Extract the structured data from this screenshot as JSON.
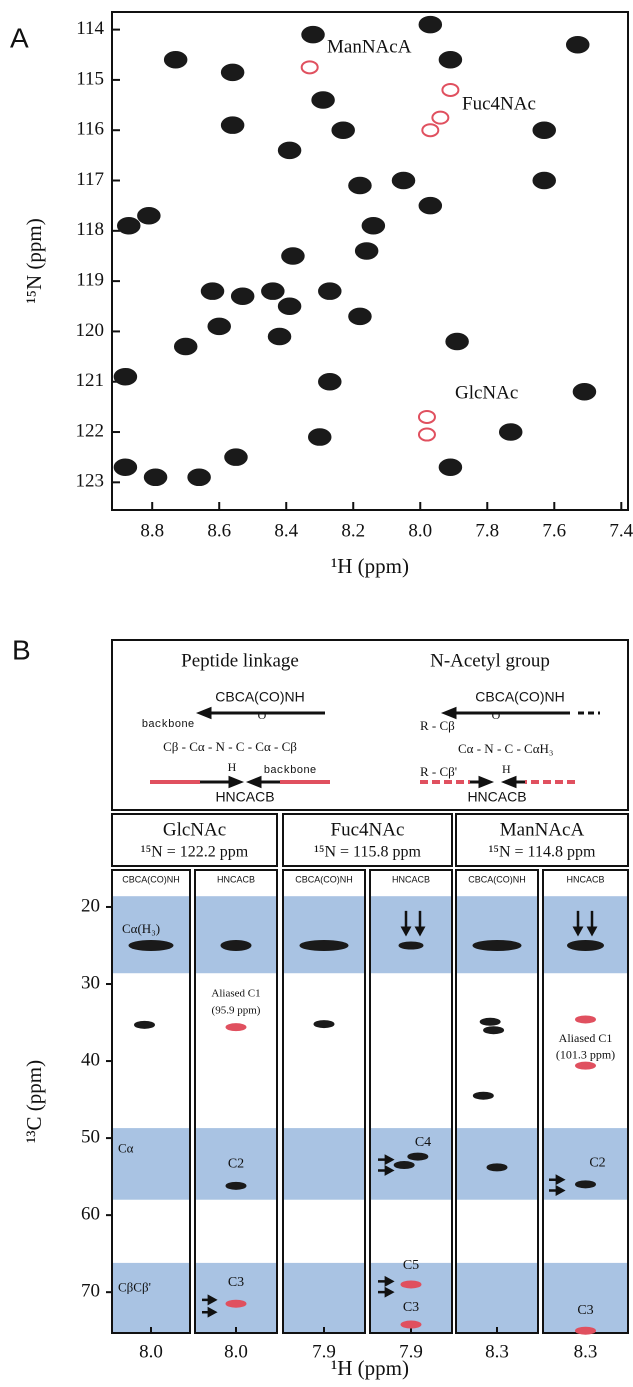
{
  "panel_labels": [
    "A",
    "B"
  ],
  "chart_data": [
    {
      "type": "scatter",
      "xlabel": "¹H (ppm)",
      "ylabel": "¹⁵N (ppm)",
      "xlim": [
        8.92,
        7.38
      ],
      "ylim": [
        113.65,
        123.55
      ],
      "xticks": [
        8.8,
        8.6,
        8.4,
        8.2,
        {
          "value": 8,
          "label": "8.0"
        },
        7.8,
        7.6,
        7.4
      ],
      "yticks": [
        114,
        115,
        116,
        117,
        118,
        119,
        120,
        121,
        122,
        123
      ],
      "series": [
        {
          "color": "#1a1a1a",
          "x": [
            8.73,
            8.56,
            8.56,
            8.32,
            8.29,
            8.39,
            8.23,
            7.97,
            7.91,
            7.53,
            7.63,
            7.63,
            8.18,
            8.05,
            7.97,
            8.14,
            8.16,
            8.87,
            8.81,
            8.38,
            8.62,
            8.53,
            8.44,
            8.39,
            8.27,
            8.18,
            8.6,
            8.7,
            8.42,
            7.89,
            8.88,
            8.27,
            7.51,
            8.3,
            7.73,
            8.55,
            7.91,
            8.88,
            8.79,
            8.66
          ],
          "values": [
            114.6,
            114.85,
            115.9,
            114.1,
            115.4,
            116.4,
            116.0,
            113.9,
            114.6,
            114.3,
            116.0,
            117.0,
            117.1,
            117.0,
            117.5,
            117.9,
            118.4,
            117.9,
            117.7,
            118.5,
            119.2,
            119.3,
            119.2,
            119.5,
            119.2,
            119.7,
            119.9,
            120.3,
            120.1,
            120.2,
            120.9,
            121.0,
            121.2,
            122.1,
            122.0,
            122.5,
            122.7,
            122.7,
            122.9,
            122.9
          ]
        },
        {
          "color": "#e0505f",
          "x": [
            8.33,
            7.91,
            7.94,
            7.97,
            7.98,
            7.98
          ],
          "values": [
            114.75,
            115.2,
            115.75,
            116.0,
            121.7,
            122.05
          ]
        }
      ],
      "annotations": [
        "ManNAcA",
        "Fuc4NAc",
        "GlcNAc"
      ]
    },
    {
      "type": "strips",
      "ylabel": "¹³C (ppm)",
      "xlabel": "¹H (ppm)",
      "ylim": [
        15.2,
        75.3
      ],
      "yticks": [
        20,
        30,
        40,
        50,
        60,
        70
      ],
      "bands": [
        [
          18.6,
          28.6
        ],
        [
          48.7,
          58.0
        ],
        [
          66.2,
          75.3
        ]
      ],
      "band_color": "#a9c3e3",
      "groups": [
        {
          "name": "GlcNAc",
          "subtitle": "¹⁵N = 122.2 ppm"
        },
        {
          "name": "Fuc4NAc",
          "subtitle": "¹⁵N = 115.8 ppm"
        },
        {
          "name": "ManNAcA",
          "subtitle": "¹⁵N = 114.8 ppm"
        }
      ],
      "strips": [
        {
          "label": "CBCA(CO)NH",
          "xlim": [
            8.06,
            7.94
          ],
          "xtick": {
            "value": 8,
            "label": "8.0"
          },
          "x": [
            8.0,
            8.01
          ],
          "values": [
            25.0,
            35.3
          ],
          "colors": [
            "#1a1a1a",
            "#1a1a1a"
          ],
          "annotations": [
            "Cα(H₃)",
            "Cα",
            "CβCβ'"
          ]
        },
        {
          "label": "HNCACB",
          "xlim": [
            8.06,
            7.94
          ],
          "xtick": {
            "value": 8,
            "label": "8.0"
          },
          "x": [
            8.0,
            8.0,
            8.0,
            8.0
          ],
          "values": [
            25.0,
            35.6,
            56.2,
            71.5
          ],
          "colors": [
            "#1a1a1a",
            "#e0505f",
            "#1a1a1a",
            "#e0505f"
          ],
          "annotations": [
            "Aliased C1",
            "(95.9 ppm)",
            "C2",
            "C3"
          ]
        },
        {
          "label": "CBCA(CO)NH",
          "xlim": [
            7.96,
            7.84
          ],
          "xtick": 7.9,
          "x": [
            7.9,
            7.9
          ],
          "values": [
            25.0,
            35.2
          ],
          "colors": [
            "#1a1a1a",
            "#1a1a1a"
          ],
          "annotations": []
        },
        {
          "label": "HNCACB",
          "xlim": [
            7.96,
            7.84
          ],
          "xtick": 7.9,
          "x": [
            7.9,
            7.91,
            7.89,
            7.9,
            7.9
          ],
          "values": [
            25.0,
            53.5,
            52.4,
            69.0,
            74.2
          ],
          "colors": [
            "#1a1a1a",
            "#1a1a1a",
            "#1a1a1a",
            "#e0505f",
            "#e0505f"
          ],
          "annotations": [
            "C4",
            "C5",
            "C3"
          ]
        },
        {
          "label": "CBCA(CO)NH",
          "xlim": [
            8.36,
            8.24
          ],
          "xtick": 8.3,
          "x": [
            8.3,
            8.31,
            8.305,
            8.32,
            8.3
          ],
          "values": [
            25.0,
            34.9,
            36.0,
            44.5,
            53.8
          ],
          "colors": [
            "#1a1a1a",
            "#1a1a1a",
            "#1a1a1a",
            "#1a1a1a",
            "#1a1a1a"
          ],
          "annotations": []
        },
        {
          "label": "HNCACB",
          "xlim": [
            8.36,
            8.24
          ],
          "xtick": 8.3,
          "x": [
            8.3,
            8.3,
            8.3,
            8.3,
            8.3
          ],
          "values": [
            25.0,
            34.6,
            40.6,
            56.0,
            75.0
          ],
          "colors": [
            "#1a1a1a",
            "#e0505f",
            "#e0505f",
            "#1a1a1a",
            "#e0505f"
          ],
          "annotations": [
            "Aliased C1",
            "(101.3 ppm)",
            "C2",
            "C3"
          ]
        }
      ]
    }
  ],
  "scheme": {
    "left_title": "Peptide linkage",
    "right_title": "N-Acetyl group",
    "left_top": "CBCA(CO)NH",
    "right_top": "CBCA(CO)NH",
    "left_bottom": "HNCACB",
    "right_bottom": "HNCACB",
    "left_backbone1": "backbone",
    "left_o": "O",
    "left_chain": "Cβ - Cα - N - C - Cα - Cβ",
    "left_h": "H",
    "left_backbone2": "backbone",
    "right_r1": "R - Cβ",
    "right_o": "O",
    "right_chain": "Cα - N - C - CαH₃",
    "right_r2": "R - Cβ'",
    "right_h": "H"
  }
}
